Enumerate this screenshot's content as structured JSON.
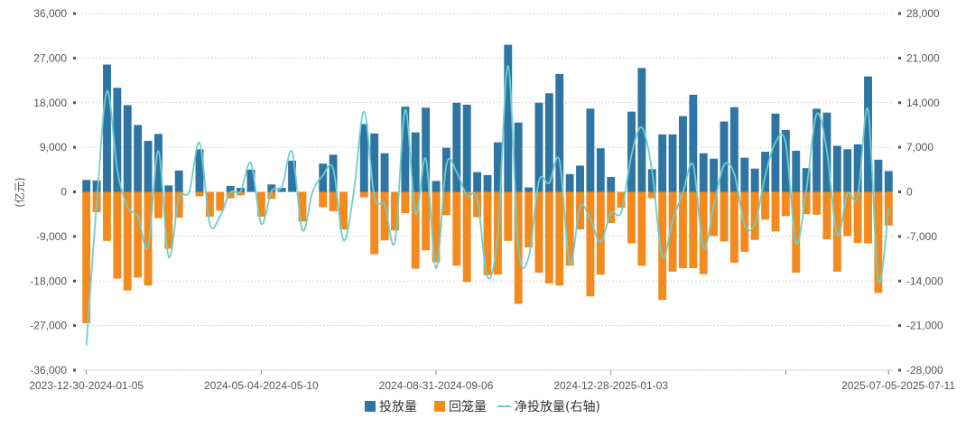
{
  "chart_data": {
    "type": "bar",
    "title": "",
    "ylabel": "(亿元)",
    "ylim_left": [
      -36000,
      36000
    ],
    "ylim_right": [
      -28000,
      28000
    ],
    "yticks_left": [
      "36,000",
      "27,000",
      "18,000",
      "9,000",
      "0",
      "-9,000",
      "-18,000",
      "-27,000",
      "-36,000"
    ],
    "yticks_right": [
      "28,000",
      "21,000",
      "14,000",
      "7,000",
      "0",
      "-7,000",
      "-14,000",
      "-21,000",
      "-28,000"
    ],
    "x_tick_labels": [
      "2023-12-30-2024-01-05",
      "2024-05-04-2024-05-10",
      "2024-08-31-2024-09-06",
      "2024-12-28-2025-01-03",
      "2025-07-05-2025-07-11"
    ],
    "grid": true,
    "legend_position": "bottom-center",
    "series": [
      {
        "name": "投放量",
        "color": "#2E75A4",
        "values": [
          2400,
          2300,
          25700,
          21000,
          17500,
          13500,
          10300,
          11700,
          1300,
          4300,
          0,
          8600,
          0,
          0,
          1200,
          800,
          4500,
          0,
          1500,
          800,
          6300,
          0,
          0,
          5700,
          7500,
          0,
          0,
          13700,
          11800,
          7800,
          0,
          17200,
          12000,
          17000,
          2200,
          8900,
          18000,
          17600,
          4000,
          3400,
          10000,
          29700,
          14000,
          900,
          18000,
          19900,
          23800,
          3600,
          5300,
          16800,
          8800,
          3000,
          0,
          16200,
          25000,
          4600,
          11600,
          11600,
          15300,
          19600,
          7800,
          6700,
          14200,
          17100,
          6900,
          4700,
          8100,
          15800,
          12500,
          8300,
          4800,
          16800,
          16000,
          9300,
          8600,
          9600,
          23300,
          6500,
          4200
        ]
      },
      {
        "name": "回笼量",
        "color": "#F28A1E",
        "values": [
          -26500,
          -4100,
          -9900,
          -17500,
          -19900,
          -17300,
          -18900,
          -5300,
          -11500,
          -5200,
          0,
          -900,
          -5000,
          -3800,
          -1300,
          -700,
          0,
          -5000,
          -1400,
          0,
          0,
          -6000,
          0,
          -3100,
          -3900,
          -7600,
          0,
          -1100,
          -12600,
          -9800,
          -7800,
          -4300,
          -15500,
          -11800,
          -14200,
          -4700,
          -14900,
          -18200,
          -5100,
          -16800,
          -16700,
          -9900,
          -22600,
          -11200,
          -16300,
          -18500,
          -18900,
          -14900,
          -7600,
          -21100,
          -16700,
          -6300,
          -3200,
          -10400,
          -14900,
          -1300,
          -21800,
          -16100,
          -15400,
          -15400,
          -16600,
          -8900,
          -10000,
          -14300,
          -12100,
          -9700,
          -5600,
          -8000,
          -4900,
          -16300,
          -4500,
          -4600,
          -9600,
          -16100,
          -8900,
          -10300,
          -10400,
          -20400,
          -6800
        ]
      },
      {
        "name": "净投放量(右轴)",
        "color": "#6CCFCB",
        "values": [
          -24100,
          -1800,
          15800,
          3500,
          -2400,
          -3800,
          -8600,
          6400,
          -10200,
          -900,
          0,
          7700,
          -5000,
          -3800,
          -100,
          100,
          4500,
          -5000,
          100,
          800,
          6300,
          -6000,
          0,
          2600,
          3600,
          -7600,
          0,
          12600,
          -800,
          -2000,
          -7800,
          12900,
          -3500,
          5200,
          -12000,
          4200,
          3100,
          -600,
          -1100,
          -13400,
          -6700,
          19800,
          -8600,
          -10300,
          1700,
          1400,
          4900,
          -11300,
          -2300,
          -4300,
          -7900,
          -3300,
          -3200,
          5800,
          10100,
          3300,
          -10200,
          -4500,
          -100,
          4200,
          -8800,
          -2200,
          4200,
          2800,
          -5200,
          -5000,
          2500,
          7800,
          7600,
          -8000,
          300,
          12200,
          6400,
          -6800,
          -300,
          -700,
          12900,
          -13900,
          -2600
        ]
      }
    ]
  },
  "legend": {
    "items": [
      "投放量",
      "回笼量",
      "净投放量(右轴)"
    ]
  }
}
